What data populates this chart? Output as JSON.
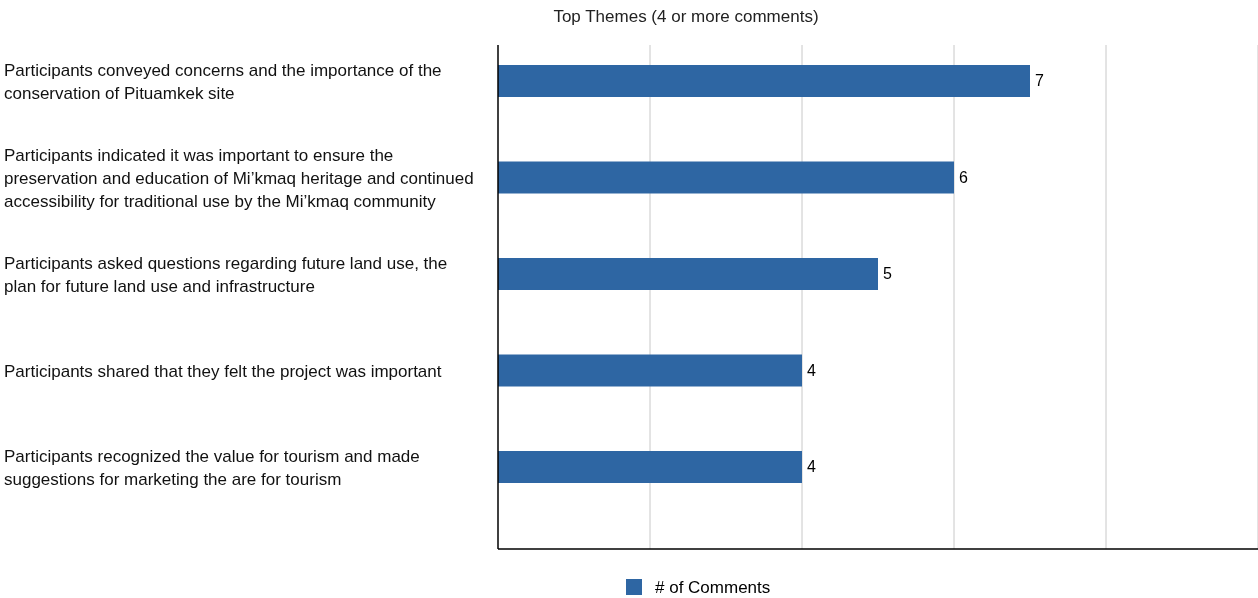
{
  "chart_data": {
    "type": "bar",
    "orientation": "horizontal",
    "title": "Top Themes (4 or more comments)",
    "categories": [
      "Participants conveyed concerns and the importance of the conservation of Pituamkek site",
      "Participants indicated it was important to ensure the preservation and education of Mi’kmaq heritage and continued accessibility for traditional use by the Mi’kmaq community",
      "Participants asked questions regarding future land use, the plan for future land use and infrastructure",
      "Participants shared that they felt the project was important",
      "Participants recognized the value for tourism and made suggestions for marketing the are for tourism"
    ],
    "series": [
      {
        "name": "# of Comments",
        "color": "#2e66a3",
        "values": [
          7,
          6,
          5,
          4,
          4
        ]
      }
    ],
    "xlim": [
      0,
      10
    ],
    "xticks": [
      {
        "value": 0,
        "label": null
      },
      {
        "value": 2,
        "label": null
      },
      {
        "value": 4,
        "label": null
      },
      {
        "value": 6,
        "label": null
      },
      {
        "value": 8,
        "label": null
      },
      {
        "value": 10,
        "label": null
      }
    ],
    "tick_labels": "y",
    "grid": "x",
    "data_labels": true,
    "legend": "bottom"
  }
}
